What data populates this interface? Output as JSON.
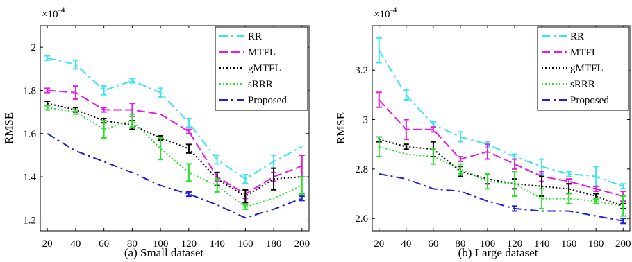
{
  "chart_data": [
    {
      "type": "line",
      "caption": "(a)  Small dataset",
      "ylabel": "RMSE",
      "exponent_base": "×10",
      "exponent_power": "-4",
      "x": [
        20,
        40,
        60,
        80,
        100,
        120,
        140,
        160,
        180,
        200
      ],
      "xlim": [
        15,
        205
      ],
      "ylim": [
        1.15,
        2.1
      ],
      "xticks": [
        20,
        40,
        60,
        80,
        100,
        120,
        140,
        160,
        180,
        200
      ],
      "yticks": [
        1.2,
        1.4,
        1.6,
        1.8,
        2.0
      ],
      "ytick_labels": [
        "1.2",
        "1.4",
        "1.6",
        "1.8",
        "2"
      ],
      "grid": false,
      "legend_position": "top-right",
      "series": [
        {
          "name": "RR",
          "color": "#33e6f0",
          "dash": "12,5,3,5",
          "values": [
            1.95,
            1.92,
            1.8,
            1.845,
            1.79,
            1.65,
            1.48,
            1.39,
            1.47,
            1.54
          ],
          "errors": [
            0.01,
            0.02,
            0.02,
            0.01,
            0.02,
            0.02,
            0.02,
            0.02,
            0.03,
            0.0
          ]
        },
        {
          "name": "MTFL",
          "color": "#e619e6",
          "dash": "12,5",
          "values": [
            1.8,
            1.79,
            1.71,
            1.71,
            1.69,
            1.61,
            1.4,
            1.32,
            1.4,
            1.45
          ],
          "errors": [
            0.01,
            0.03,
            0.01,
            0.03,
            0.0,
            0.01,
            0.02,
            0.02,
            0.02,
            0.05
          ]
        },
        {
          "name": "gMTFL",
          "color": "#000000",
          "dash": "2,3",
          "values": [
            1.74,
            1.71,
            1.66,
            1.64,
            1.58,
            1.53,
            1.39,
            1.31,
            1.39,
            1.4
          ],
          "errors": [
            0.01,
            0.01,
            0.01,
            0.02,
            0.01,
            0.02,
            0.03,
            0.03,
            0.05,
            0.0
          ]
        },
        {
          "name": "sRRR",
          "color": "#22e622",
          "dash": "2,3",
          "values": [
            1.72,
            1.7,
            1.62,
            1.66,
            1.53,
            1.42,
            1.36,
            1.26,
            1.3,
            1.36
          ],
          "errors": [
            0.01,
            0.01,
            0.04,
            0.03,
            0.05,
            0.04,
            0.03,
            0.01,
            0.0,
            0.04
          ]
        },
        {
          "name": "Proposed",
          "color": "#1f1fd6",
          "dash": "12,5,3,5",
          "values": [
            1.6,
            1.52,
            1.47,
            1.42,
            1.36,
            1.32,
            1.27,
            1.21,
            1.25,
            1.3
          ],
          "errors": [
            0.0,
            0.0,
            0.0,
            0.0,
            0.0,
            0.01,
            0.0,
            0.0,
            0.0,
            0.01
          ]
        }
      ]
    },
    {
      "type": "line",
      "caption": "(b)  Large dataset",
      "ylabel": "RMSE",
      "exponent_base": "×10",
      "exponent_power": "-4",
      "x": [
        20,
        40,
        60,
        80,
        100,
        120,
        140,
        160,
        180,
        200
      ],
      "xlim": [
        15,
        205
      ],
      "ylim": [
        2.55,
        3.38
      ],
      "xticks": [
        20,
        40,
        60,
        80,
        100,
        120,
        140,
        160,
        180,
        200
      ],
      "yticks": [
        2.6,
        2.8,
        3.0,
        3.2
      ],
      "ytick_labels": [
        "2.6",
        "2.8",
        "3",
        "3.2"
      ],
      "grid": false,
      "legend_position": "top-right",
      "series": [
        {
          "name": "RR",
          "color": "#33e6f0",
          "dash": "12,5,3,5",
          "values": [
            3.28,
            3.1,
            2.98,
            2.93,
            2.9,
            2.85,
            2.81,
            2.78,
            2.77,
            2.73
          ],
          "errors": [
            0.05,
            0.02,
            0.01,
            0.02,
            0.01,
            0.01,
            0.03,
            0.01,
            0.04,
            0.01
          ]
        },
        {
          "name": "MTFL",
          "color": "#e619e6",
          "dash": "12,5",
          "values": [
            3.08,
            2.96,
            2.96,
            2.84,
            2.87,
            2.82,
            2.77,
            2.75,
            2.72,
            2.69
          ],
          "errors": [
            0.03,
            0.04,
            0.01,
            0.01,
            0.03,
            0.02,
            0.02,
            0.01,
            0.01,
            0.02
          ]
        },
        {
          "name": "gMTFL",
          "color": "#000000",
          "dash": "2,3",
          "values": [
            2.92,
            2.89,
            2.88,
            2.79,
            2.76,
            2.74,
            2.73,
            2.72,
            2.69,
            2.65
          ],
          "errors": [
            0.01,
            0.01,
            0.03,
            0.02,
            0.02,
            0.02,
            0.04,
            0.02,
            0.01,
            0.01
          ]
        },
        {
          "name": "sRRR",
          "color": "#22e622",
          "dash": "2,3",
          "values": [
            2.89,
            2.86,
            2.85,
            2.8,
            2.75,
            2.74,
            2.68,
            2.68,
            2.67,
            2.65
          ],
          "errors": [
            0.04,
            0.0,
            0.03,
            0.02,
            0.03,
            0.05,
            0.04,
            0.02,
            0.01,
            0.04
          ]
        },
        {
          "name": "Proposed",
          "color": "#1f1fd6",
          "dash": "12,5,3,5",
          "values": [
            2.78,
            2.76,
            2.72,
            2.71,
            2.67,
            2.64,
            2.63,
            2.63,
            2.61,
            2.59
          ],
          "errors": [
            0.0,
            0.0,
            0.0,
            0.0,
            0.0,
            0.01,
            0.0,
            0.0,
            0.0,
            0.01
          ]
        }
      ]
    }
  ]
}
